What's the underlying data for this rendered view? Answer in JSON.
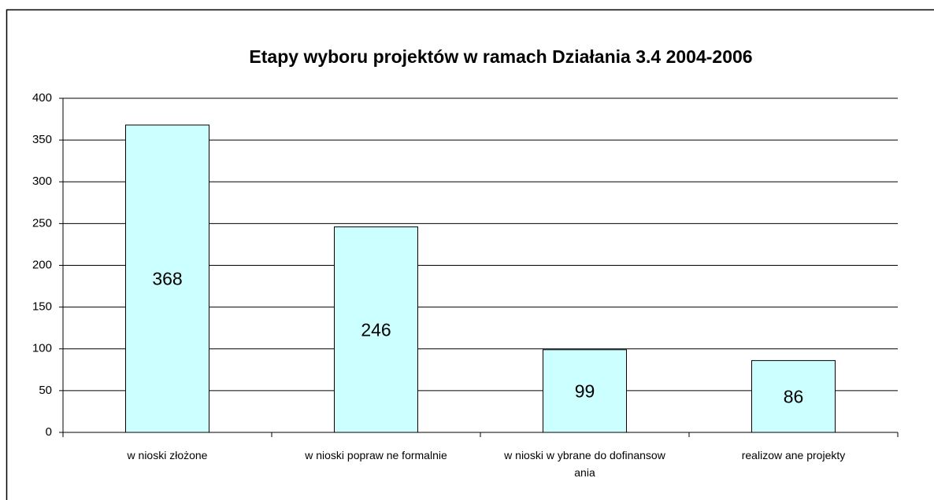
{
  "chart_data": {
    "type": "bar",
    "title": "Etapy wyboru projektów w ramach Działania 3.4   2004-2006",
    "categories": [
      "w nioski złożone",
      "w nioski popraw ne formalnie",
      "w nioski w ybrane do dofinansow ania",
      "realizow ane projekty"
    ],
    "values": [
      368,
      246,
      99,
      86
    ],
    "color": "#ccffff",
    "ylim": [
      0,
      400
    ],
    "yticks": [
      0,
      50,
      100,
      150,
      200,
      250,
      300,
      350,
      400
    ],
    "grid": true
  }
}
